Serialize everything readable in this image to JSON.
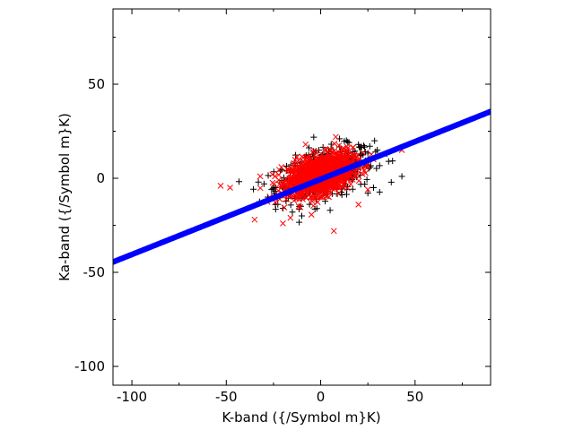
{
  "chart_data": {
    "type": "scatter",
    "title": "",
    "xlabel": "K-band ({/Symbol m}K)",
    "ylabel": "Ka-band ({/Symbol m}K)",
    "xlim": [
      -110,
      90
    ],
    "ylim": [
      -110,
      90
    ],
    "xticks": [
      -100,
      -50,
      0,
      50
    ],
    "yticks": [
      -100,
      -50,
      0,
      50
    ],
    "xtick_labels": [
      "-100",
      "-50",
      "0",
      "50"
    ],
    "ytick_labels": [
      "-100",
      "-50",
      "0",
      "50"
    ],
    "grid": false,
    "series": [
      {
        "marker": "plus",
        "color": "#000000",
        "cloud": {
          "center": [
            2,
            2
          ],
          "x_spread": 13,
          "y_spread": 6.5,
          "slope": 0.25,
          "count": 420
        },
        "points": [
          [
            43,
            1
          ],
          [
            36,
            9
          ],
          [
            35,
            13
          ],
          [
            30,
            15
          ],
          [
            26,
            17
          ],
          [
            20,
            18
          ],
          [
            15,
            19
          ],
          [
            10,
            21
          ],
          [
            -30,
            -3
          ],
          [
            -26,
            -6
          ],
          [
            -28,
            -10
          ],
          [
            -24,
            -14
          ],
          [
            -20,
            -16
          ],
          [
            -15,
            -18
          ],
          [
            25,
            -8
          ],
          [
            28,
            -5
          ],
          [
            21,
            12
          ],
          [
            -33,
            -2
          ],
          [
            -10,
            -20
          ],
          [
            5,
            -17
          ]
        ]
      },
      {
        "marker": "x",
        "color": "#ff0000",
        "cloud": {
          "center": [
            0,
            2
          ],
          "x_spread": 8.5,
          "y_spread": 5,
          "slope": 0.25,
          "count": 1300
        },
        "points": [
          [
            -53,
            -4
          ],
          [
            -48,
            -5
          ],
          [
            -35,
            -22
          ],
          [
            8,
            22
          ],
          [
            7,
            -28
          ],
          [
            43,
            15
          ],
          [
            -32,
            1
          ],
          [
            -20,
            -24
          ],
          [
            -16,
            -21
          ],
          [
            20,
            -14
          ],
          [
            28,
            10
          ],
          [
            -27,
            -10
          ],
          [
            12,
            16
          ],
          [
            -8,
            18
          ],
          [
            25,
            -6
          ]
        ]
      },
      {
        "marker": "dot",
        "color": "#0000ff",
        "fit_line": {
          "slope": 0.4,
          "intercept": -0.5,
          "x_range": [
            -110,
            90
          ]
        }
      }
    ]
  }
}
